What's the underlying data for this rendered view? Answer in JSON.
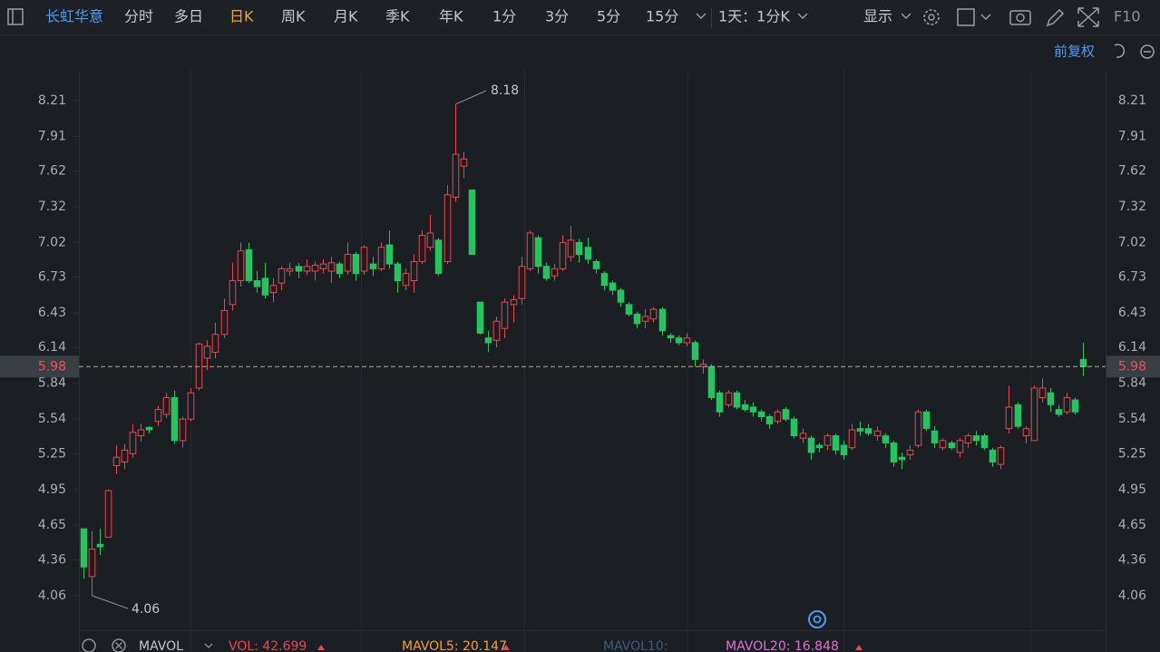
{
  "toolbar": {
    "stock": "长虹华意",
    "tabs": [
      "分时",
      "多日",
      "日K",
      "周K",
      "月K",
      "季K",
      "年K",
      "1分",
      "3分",
      "5分",
      "15分"
    ],
    "active_tab": 2,
    "period": "1天：1分K",
    "display": "显示",
    "f10": "F10",
    "adjust": "前复权"
  },
  "chart_data": {
    "type": "candlestick",
    "up_color": "#e8474f",
    "down_color": "#22c55e",
    "ylim": [
      3.77,
      8.46
    ],
    "yticks": [
      4.06,
      4.36,
      4.65,
      4.95,
      5.25,
      5.54,
      5.84,
      6.14,
      6.43,
      6.73,
      7.02,
      7.32,
      7.62,
      7.91,
      8.21
    ],
    "last_price": 5.98,
    "max_price": 8.18,
    "min_price": 4.06,
    "ohlc": [
      [
        4.62,
        4.62,
        4.2,
        4.3
      ],
      [
        4.22,
        4.6,
        4.06,
        4.45
      ],
      [
        4.49,
        4.62,
        4.4,
        4.47
      ],
      [
        4.55,
        4.95,
        4.55,
        4.94
      ],
      [
        5.15,
        5.32,
        5.08,
        5.22
      ],
      [
        5.18,
        5.33,
        5.12,
        5.28
      ],
      [
        5.25,
        5.5,
        5.22,
        5.43
      ],
      [
        5.4,
        5.5,
        5.35,
        5.45
      ],
      [
        5.47,
        5.48,
        5.42,
        5.45
      ],
      [
        5.52,
        5.65,
        5.48,
        5.62
      ],
      [
        5.58,
        5.76,
        5.55,
        5.72
      ],
      [
        5.72,
        5.78,
        5.33,
        5.36
      ],
      [
        5.36,
        5.56,
        5.3,
        5.54
      ],
      [
        5.54,
        5.8,
        5.52,
        5.76
      ],
      [
        5.8,
        6.18,
        5.78,
        6.17
      ],
      [
        6.05,
        6.2,
        5.95,
        6.15
      ],
      [
        6.1,
        6.35,
        6.05,
        6.25
      ],
      [
        6.25,
        6.55,
        6.22,
        6.45
      ],
      [
        6.5,
        6.85,
        6.45,
        6.7
      ],
      [
        6.7,
        7.02,
        6.65,
        6.95
      ],
      [
        6.96,
        7.02,
        6.68,
        6.7
      ],
      [
        6.7,
        6.78,
        6.6,
        6.65
      ],
      [
        6.72,
        6.85,
        6.55,
        6.58
      ],
      [
        6.6,
        6.72,
        6.52,
        6.66
      ],
      [
        6.68,
        6.82,
        6.62,
        6.8
      ],
      [
        6.78,
        6.85,
        6.74,
        6.8
      ],
      [
        6.82,
        6.85,
        6.72,
        6.78
      ],
      [
        6.78,
        6.88,
        6.75,
        6.82
      ],
      [
        6.78,
        6.86,
        6.7,
        6.83
      ],
      [
        6.8,
        6.88,
        6.76,
        6.84
      ],
      [
        6.78,
        6.9,
        6.68,
        6.85
      ],
      [
        6.84,
        6.86,
        6.72,
        6.76
      ],
      [
        6.78,
        7.02,
        6.75,
        6.92
      ],
      [
        6.92,
        6.94,
        6.7,
        6.76
      ],
      [
        6.78,
        7.0,
        6.75,
        6.98
      ],
      [
        6.84,
        6.9,
        6.74,
        6.8
      ],
      [
        6.8,
        7.02,
        6.78,
        6.98
      ],
      [
        7.0,
        7.12,
        6.8,
        6.84
      ],
      [
        6.84,
        6.86,
        6.6,
        6.7
      ],
      [
        6.66,
        6.8,
        6.62,
        6.76
      ],
      [
        6.7,
        6.92,
        6.6,
        6.86
      ],
      [
        6.86,
        7.12,
        6.84,
        7.08
      ],
      [
        6.98,
        7.25,
        6.95,
        7.1
      ],
      [
        7.04,
        7.06,
        6.74,
        6.76
      ],
      [
        6.86,
        7.5,
        6.84,
        7.42
      ],
      [
        7.4,
        8.18,
        7.36,
        7.76
      ],
      [
        7.66,
        7.78,
        7.56,
        7.72
      ],
      [
        7.46,
        7.46,
        6.92,
        6.92
      ],
      [
        6.52,
        6.52,
        6.25,
        6.26
      ],
      [
        6.22,
        6.28,
        6.1,
        6.18
      ],
      [
        6.2,
        6.4,
        6.14,
        6.36
      ],
      [
        6.3,
        6.55,
        6.22,
        6.52
      ],
      [
        6.5,
        6.58,
        6.35,
        6.54
      ],
      [
        6.55,
        6.9,
        6.5,
        6.82
      ],
      [
        6.8,
        7.12,
        6.78,
        7.1
      ],
      [
        7.06,
        7.08,
        6.76,
        6.82
      ],
      [
        6.82,
        6.85,
        6.7,
        6.72
      ],
      [
        6.74,
        6.84,
        6.7,
        6.8
      ],
      [
        6.8,
        7.08,
        6.78,
        7.02
      ],
      [
        6.9,
        7.16,
        6.86,
        7.04
      ],
      [
        7.02,
        7.05,
        6.85,
        6.92
      ],
      [
        6.98,
        7.06,
        6.84,
        6.88
      ],
      [
        6.86,
        6.88,
        6.76,
        6.8
      ],
      [
        6.76,
        6.78,
        6.62,
        6.66
      ],
      [
        6.68,
        6.7,
        6.58,
        6.62
      ],
      [
        6.62,
        6.64,
        6.48,
        6.52
      ],
      [
        6.5,
        6.52,
        6.4,
        6.42
      ],
      [
        6.42,
        6.44,
        6.3,
        6.34
      ],
      [
        6.36,
        6.46,
        6.3,
        6.4
      ],
      [
        6.38,
        6.48,
        6.35,
        6.46
      ],
      [
        6.46,
        6.48,
        6.24,
        6.28
      ],
      [
        6.24,
        6.26,
        6.18,
        6.22
      ],
      [
        6.22,
        6.24,
        6.16,
        6.18
      ],
      [
        6.18,
        6.26,
        6.15,
        6.22
      ],
      [
        6.18,
        6.2,
        5.98,
        6.04
      ],
      [
        5.98,
        6.04,
        5.92,
        6.0
      ],
      [
        5.98,
        6.0,
        5.7,
        5.72
      ],
      [
        5.76,
        5.78,
        5.56,
        5.6
      ],
      [
        5.66,
        5.78,
        5.64,
        5.76
      ],
      [
        5.76,
        5.78,
        5.62,
        5.64
      ],
      [
        5.66,
        5.7,
        5.6,
        5.62
      ],
      [
        5.64,
        5.68,
        5.56,
        5.6
      ],
      [
        5.6,
        5.62,
        5.52,
        5.56
      ],
      [
        5.56,
        5.58,
        5.46,
        5.5
      ],
      [
        5.52,
        5.62,
        5.5,
        5.6
      ],
      [
        5.62,
        5.64,
        5.52,
        5.54
      ],
      [
        5.54,
        5.56,
        5.38,
        5.4
      ],
      [
        5.38,
        5.46,
        5.34,
        5.42
      ],
      [
        5.38,
        5.4,
        5.2,
        5.26
      ],
      [
        5.32,
        5.34,
        5.26,
        5.3
      ],
      [
        5.32,
        5.42,
        5.28,
        5.4
      ],
      [
        5.4,
        5.42,
        5.24,
        5.28
      ],
      [
        5.32,
        5.36,
        5.2,
        5.24
      ],
      [
        5.3,
        5.5,
        5.28,
        5.45
      ],
      [
        5.46,
        5.52,
        5.4,
        5.44
      ],
      [
        5.46,
        5.5,
        5.4,
        5.42
      ],
      [
        5.4,
        5.48,
        5.36,
        5.44
      ],
      [
        5.4,
        5.42,
        5.3,
        5.34
      ],
      [
        5.34,
        5.36,
        5.14,
        5.18
      ],
      [
        5.22,
        5.26,
        5.12,
        5.2
      ],
      [
        5.24,
        5.32,
        5.2,
        5.28
      ],
      [
        5.32,
        5.62,
        5.3,
        5.6
      ],
      [
        5.6,
        5.62,
        5.44,
        5.46
      ],
      [
        5.44,
        5.48,
        5.3,
        5.34
      ],
      [
        5.3,
        5.38,
        5.28,
        5.36
      ],
      [
        5.34,
        5.36,
        5.28,
        5.3
      ],
      [
        5.26,
        5.38,
        5.22,
        5.36
      ],
      [
        5.34,
        5.42,
        5.3,
        5.4
      ],
      [
        5.4,
        5.44,
        5.32,
        5.36
      ],
      [
        5.4,
        5.42,
        5.28,
        5.3
      ],
      [
        5.28,
        5.3,
        5.14,
        5.18
      ],
      [
        5.16,
        5.32,
        5.12,
        5.3
      ],
      [
        5.46,
        5.82,
        5.42,
        5.64
      ],
      [
        5.66,
        5.68,
        5.46,
        5.48
      ],
      [
        5.4,
        5.48,
        5.34,
        5.46
      ],
      [
        5.36,
        5.82,
        5.36,
        5.8
      ],
      [
        5.72,
        5.88,
        5.68,
        5.8
      ],
      [
        5.76,
        5.8,
        5.6,
        5.66
      ],
      [
        5.62,
        5.66,
        5.56,
        5.58
      ],
      [
        5.6,
        5.76,
        5.58,
        5.72
      ],
      [
        5.7,
        5.72,
        5.58,
        5.6
      ],
      [
        6.04,
        6.18,
        5.9,
        5.98
      ]
    ]
  },
  "indicator_bar": {
    "name": "MAVOL",
    "items": [
      "VOL: 42.699",
      "MAVOL5: 20.147",
      "MAVOL10:",
      "MAVOL20: 16.848"
    ]
  }
}
